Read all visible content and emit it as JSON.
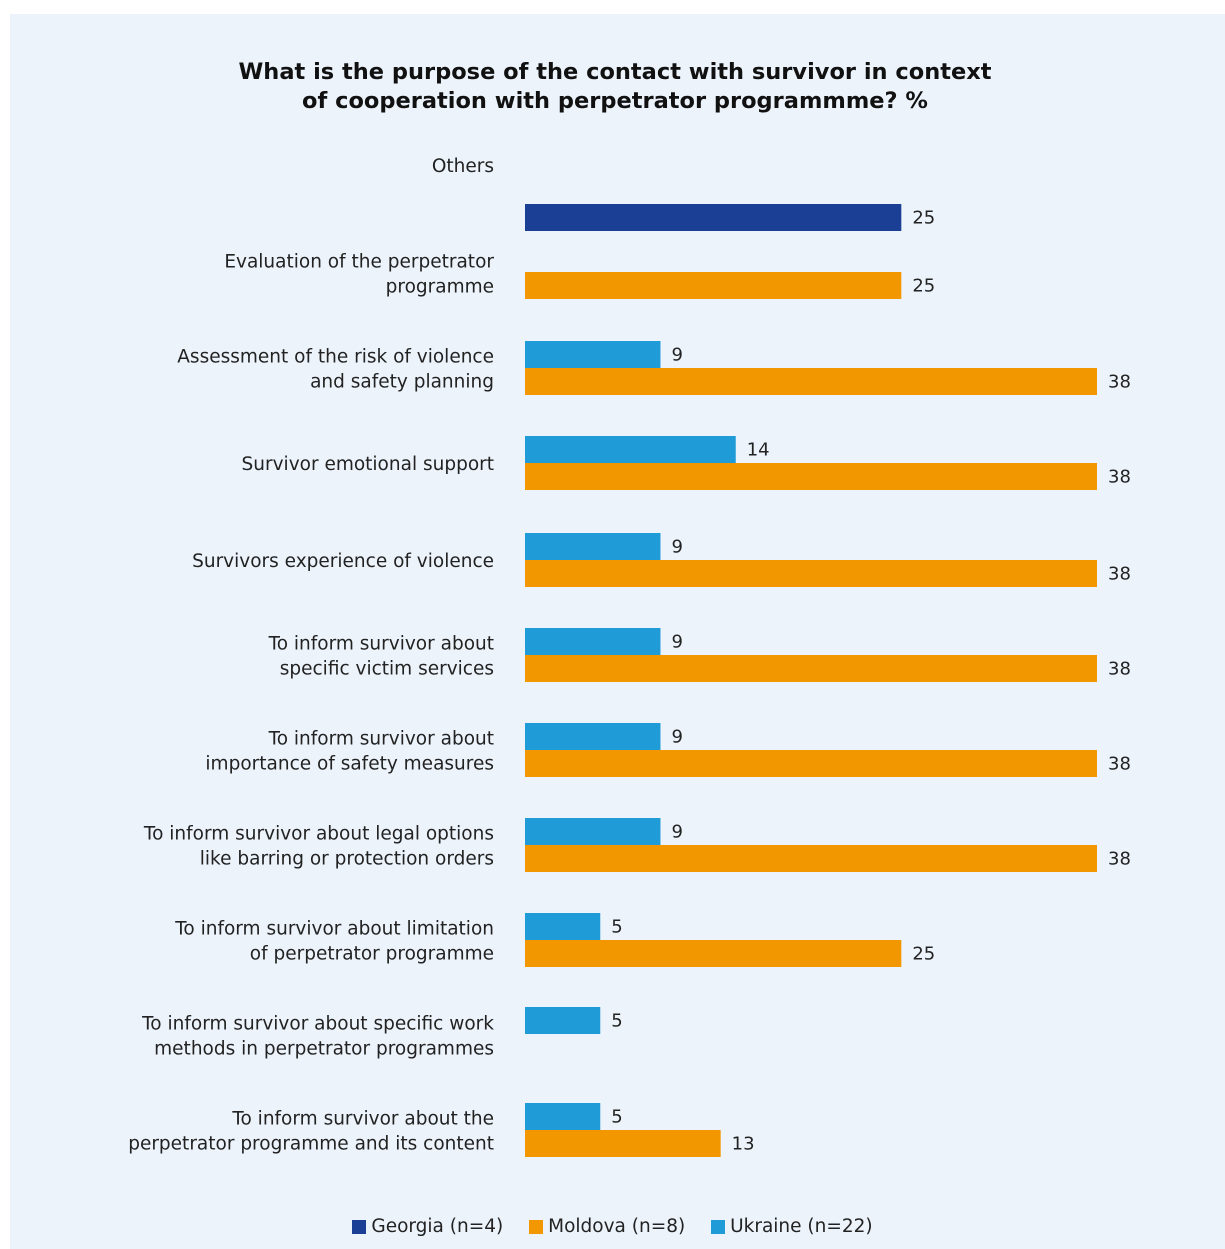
{
  "title_lines": [
    "What is the purpose of the contact with survivor in context",
    "of cooperation with perpetrator programmme? %"
  ],
  "colors": {
    "Georgia": "#1a3f95",
    "Moldova": "#f39700",
    "Ukraine": "#1f9bd8",
    "background": "#ecf3fb"
  },
  "legend": [
    {
      "name": "Georgia (n=4)",
      "color": "#1a3f95"
    },
    {
      "name": "Moldova (n=8)",
      "color": "#f39700"
    },
    {
      "name": "Ukraine (n=22)",
      "color": "#1f9bd8"
    }
  ],
  "chart_data": {
    "type": "bar",
    "orientation": "horizontal",
    "title": "What is the purpose of the contact with survivor in context of cooperation with perpetrator programmme? %",
    "categories": [
      [
        "Others"
      ],
      [
        "Evaluation of the perpetrator",
        "programme"
      ],
      [
        "Assessment of the risk of violence",
        "and safety planning"
      ],
      [
        "Survivor emotional support"
      ],
      [
        "Survivors experience of violence"
      ],
      [
        "To inform survivor about ",
        "specific victim services"
      ],
      [
        "To inform survivor about",
        "importance of safety measures"
      ],
      [
        "To inform survivor about legal options",
        "like barring or protection orders"
      ],
      [
        "To inform survivor about limitation",
        "of perpetrator programme"
      ],
      [
        "To inform survivor about specific work",
        "methods in perpetrator programmes"
      ],
      [
        "To inform survivor about the",
        "perpetrator programme and its content"
      ]
    ],
    "series": [
      {
        "name": "Georgia (n=4)",
        "values": [
          25,
          null,
          null,
          null,
          null,
          null,
          null,
          null,
          null,
          null,
          null
        ]
      },
      {
        "name": "Moldova (n=8)",
        "values": [
          null,
          25,
          38,
          38,
          38,
          38,
          38,
          38,
          25,
          null,
          13
        ]
      },
      {
        "name": "Ukraine (n=22)",
        "values": [
          null,
          null,
          9,
          14,
          9,
          9,
          9,
          9,
          5,
          5,
          5
        ]
      }
    ],
    "xlim": [
      0,
      38
    ],
    "grid": false,
    "legend_position": "bottom"
  }
}
